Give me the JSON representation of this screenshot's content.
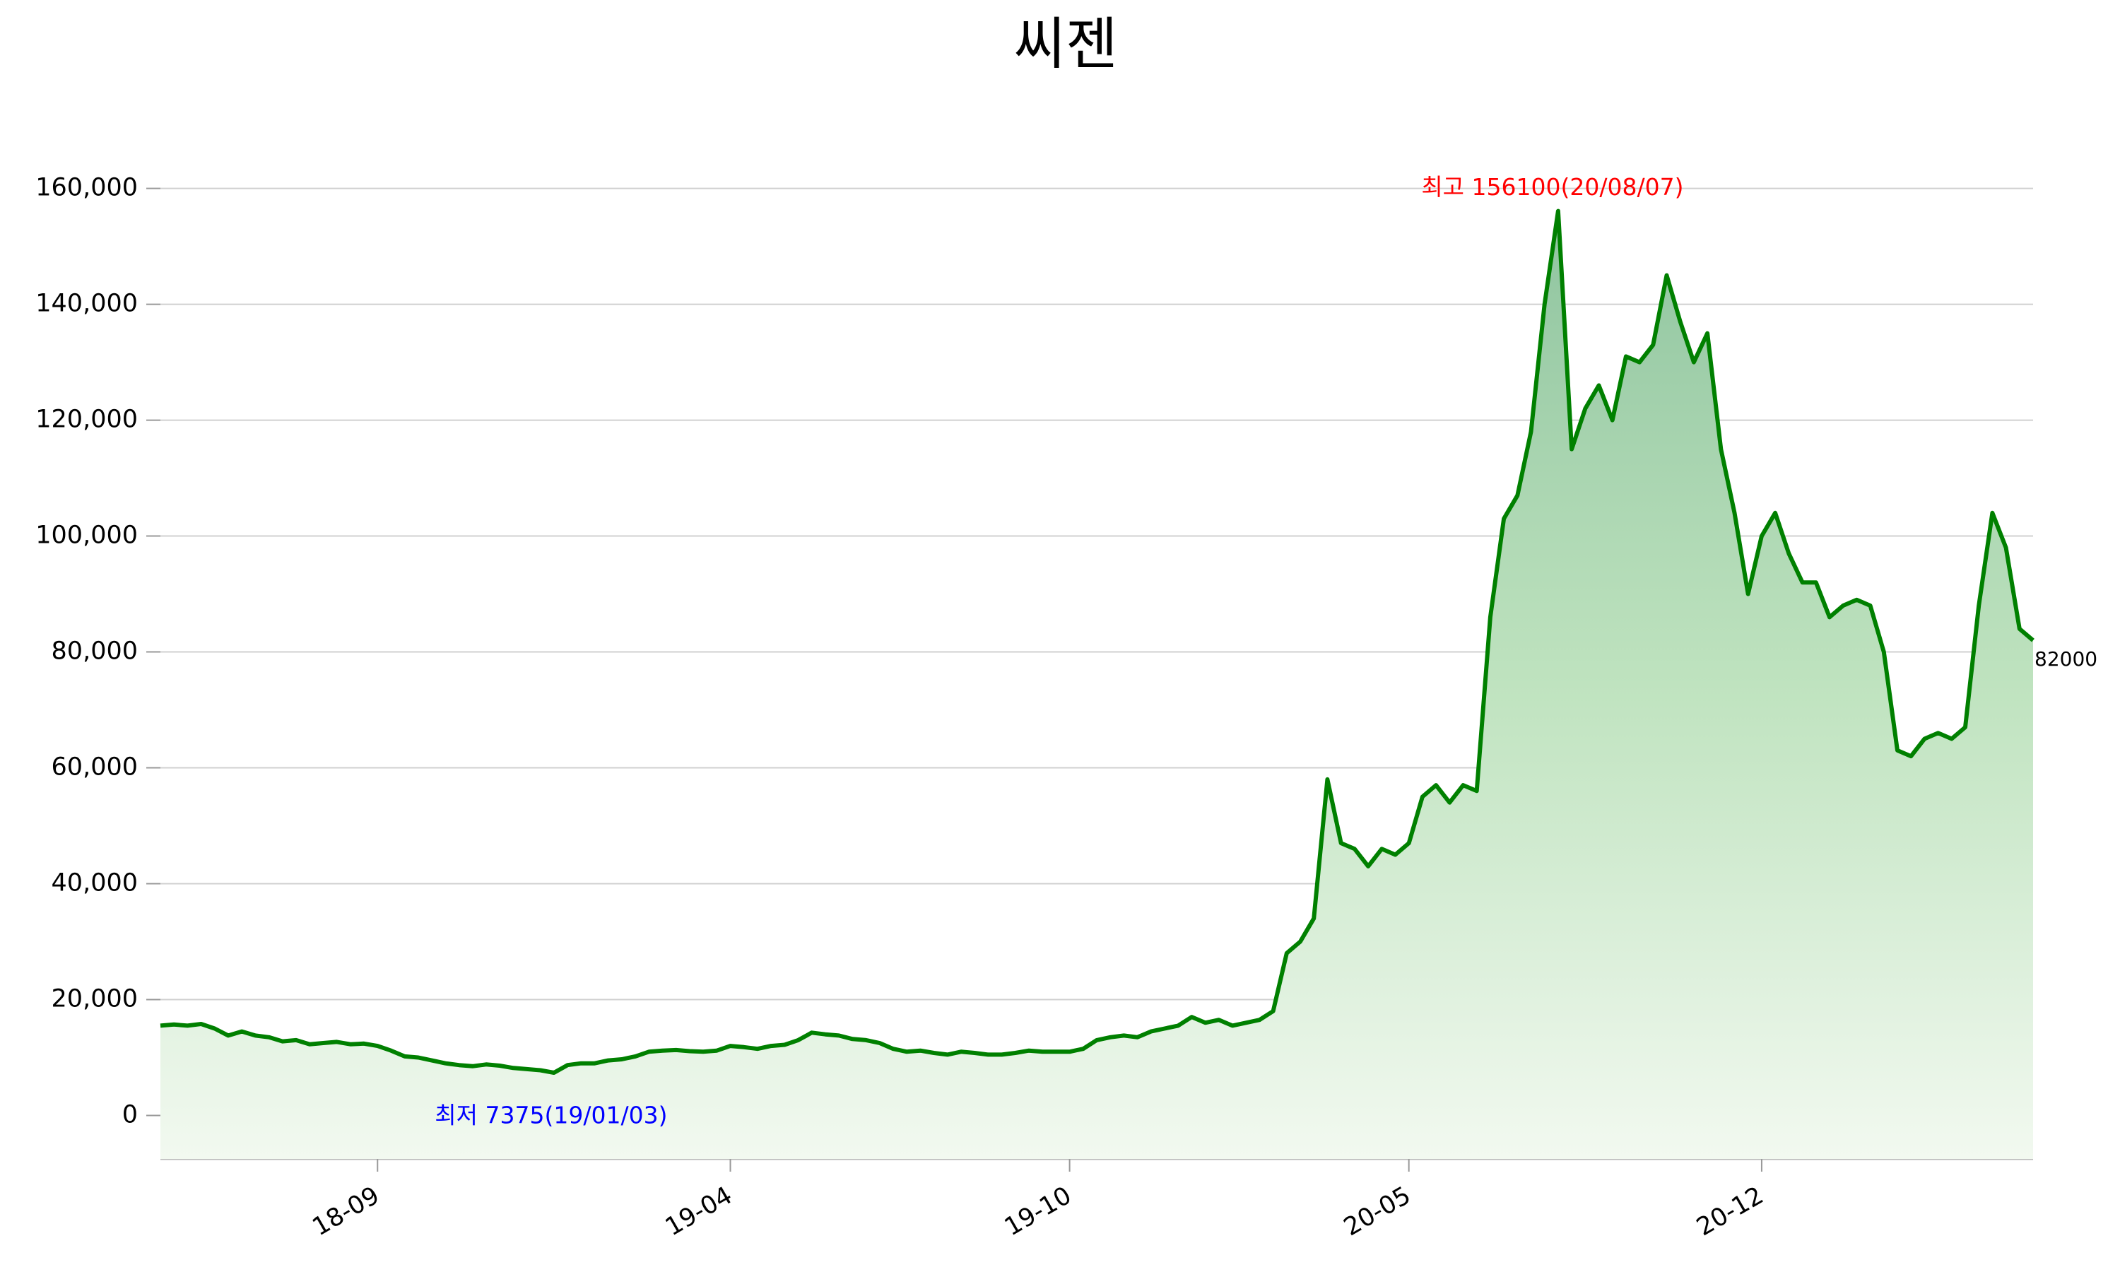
{
  "chart_data": {
    "type": "area-line",
    "title": "씨젠",
    "categories": [
      null,
      null,
      null,
      null,
      null,
      null,
      null,
      null,
      null,
      null,
      null,
      null,
      null,
      null,
      null,
      null,
      "18-09",
      null,
      null,
      null,
      null,
      null,
      null,
      null,
      null,
      null,
      null,
      null,
      null,
      null,
      null,
      null,
      null,
      null,
      null,
      null,
      null,
      null,
      null,
      null,
      null,
      null,
      "19-04",
      null,
      null,
      null,
      null,
      null,
      null,
      null,
      null,
      null,
      null,
      null,
      null,
      null,
      null,
      null,
      null,
      null,
      null,
      null,
      null,
      null,
      null,
      null,
      null,
      "19-10",
      null,
      null,
      null,
      null,
      null,
      null,
      null,
      null,
      null,
      null,
      null,
      null,
      null,
      null,
      null,
      null,
      null,
      null,
      null,
      null,
      null,
      null,
      null,
      null,
      "20-05",
      null,
      null,
      null,
      null,
      null,
      null,
      null,
      null,
      null,
      null,
      null,
      null,
      null,
      null,
      null,
      null,
      null,
      null,
      null,
      null,
      null,
      null,
      null,
      null,
      null,
      "20-12",
      null,
      null,
      null,
      null,
      null,
      null,
      null,
      null,
      null,
      null,
      null,
      null,
      null,
      null,
      null,
      null,
      null,
      null,
      null,
      null
    ],
    "values": [
      15500,
      15700,
      15500,
      15800,
      15000,
      13800,
      14500,
      13800,
      13500,
      12800,
      13000,
      12300,
      12500,
      12700,
      12300,
      12400,
      12000,
      11200,
      10200,
      10000,
      9500,
      9000,
      8700,
      8500,
      8800,
      8600,
      8200,
      8000,
      7800,
      7375,
      8700,
      9000,
      9000,
      9500,
      9700,
      10200,
      11000,
      11200,
      11300,
      11100,
      11000,
      11200,
      12000,
      11800,
      11500,
      12000,
      12200,
      13000,
      14300,
      14000,
      13800,
      13200,
      13000,
      12500,
      11500,
      11000,
      11200,
      10800,
      10500,
      11000,
      10800,
      10500,
      10500,
      10800,
      11200,
      11000,
      11000,
      11000,
      11500,
      13000,
      13500,
      13800,
      13500,
      14500,
      15000,
      15500,
      17000,
      16000,
      16500,
      15500,
      16000,
      16500,
      18000,
      28000,
      30000,
      34000,
      58000,
      47000,
      46000,
      43000,
      46000,
      45000,
      47000,
      55000,
      57000,
      54000,
      57000,
      56000,
      86000,
      103000,
      107000,
      118000,
      140000,
      156100,
      115000,
      122000,
      126000,
      120000,
      131000,
      130000,
      133000,
      145000,
      137000,
      130000,
      135000,
      115000,
      104000,
      90000,
      100000,
      104000,
      97000,
      92000,
      92000,
      86000,
      88000,
      89000,
      88000,
      80000,
      63000,
      62000,
      65000,
      66000,
      65000,
      67000,
      88000,
      104000,
      98000,
      84000,
      82000
    ],
    "color": "#008000",
    "ylim": [
      -7500,
      168000
    ],
    "yticks": [
      0,
      {
        "value": 20000,
        "label": "20,000"
      },
      {
        "value": 40000,
        "label": "40,000"
      },
      {
        "value": 60000,
        "label": "60,000"
      },
      {
        "value": 80000,
        "label": "80,000"
      },
      {
        "value": 100000,
        "label": "100,000"
      },
      {
        "value": 120000,
        "label": "120,000"
      },
      {
        "value": 140000,
        "label": "140,000"
      },
      {
        "value": 160000,
        "label": "160,000"
      }
    ],
    "grid": true,
    "annotations": [
      {
        "text": "최고 156100(20/08/07)",
        "color": "#ff0000"
      },
      {
        "text": "최저 7375(19/01/03)",
        "color": "#0000ff"
      }
    ]
  }
}
